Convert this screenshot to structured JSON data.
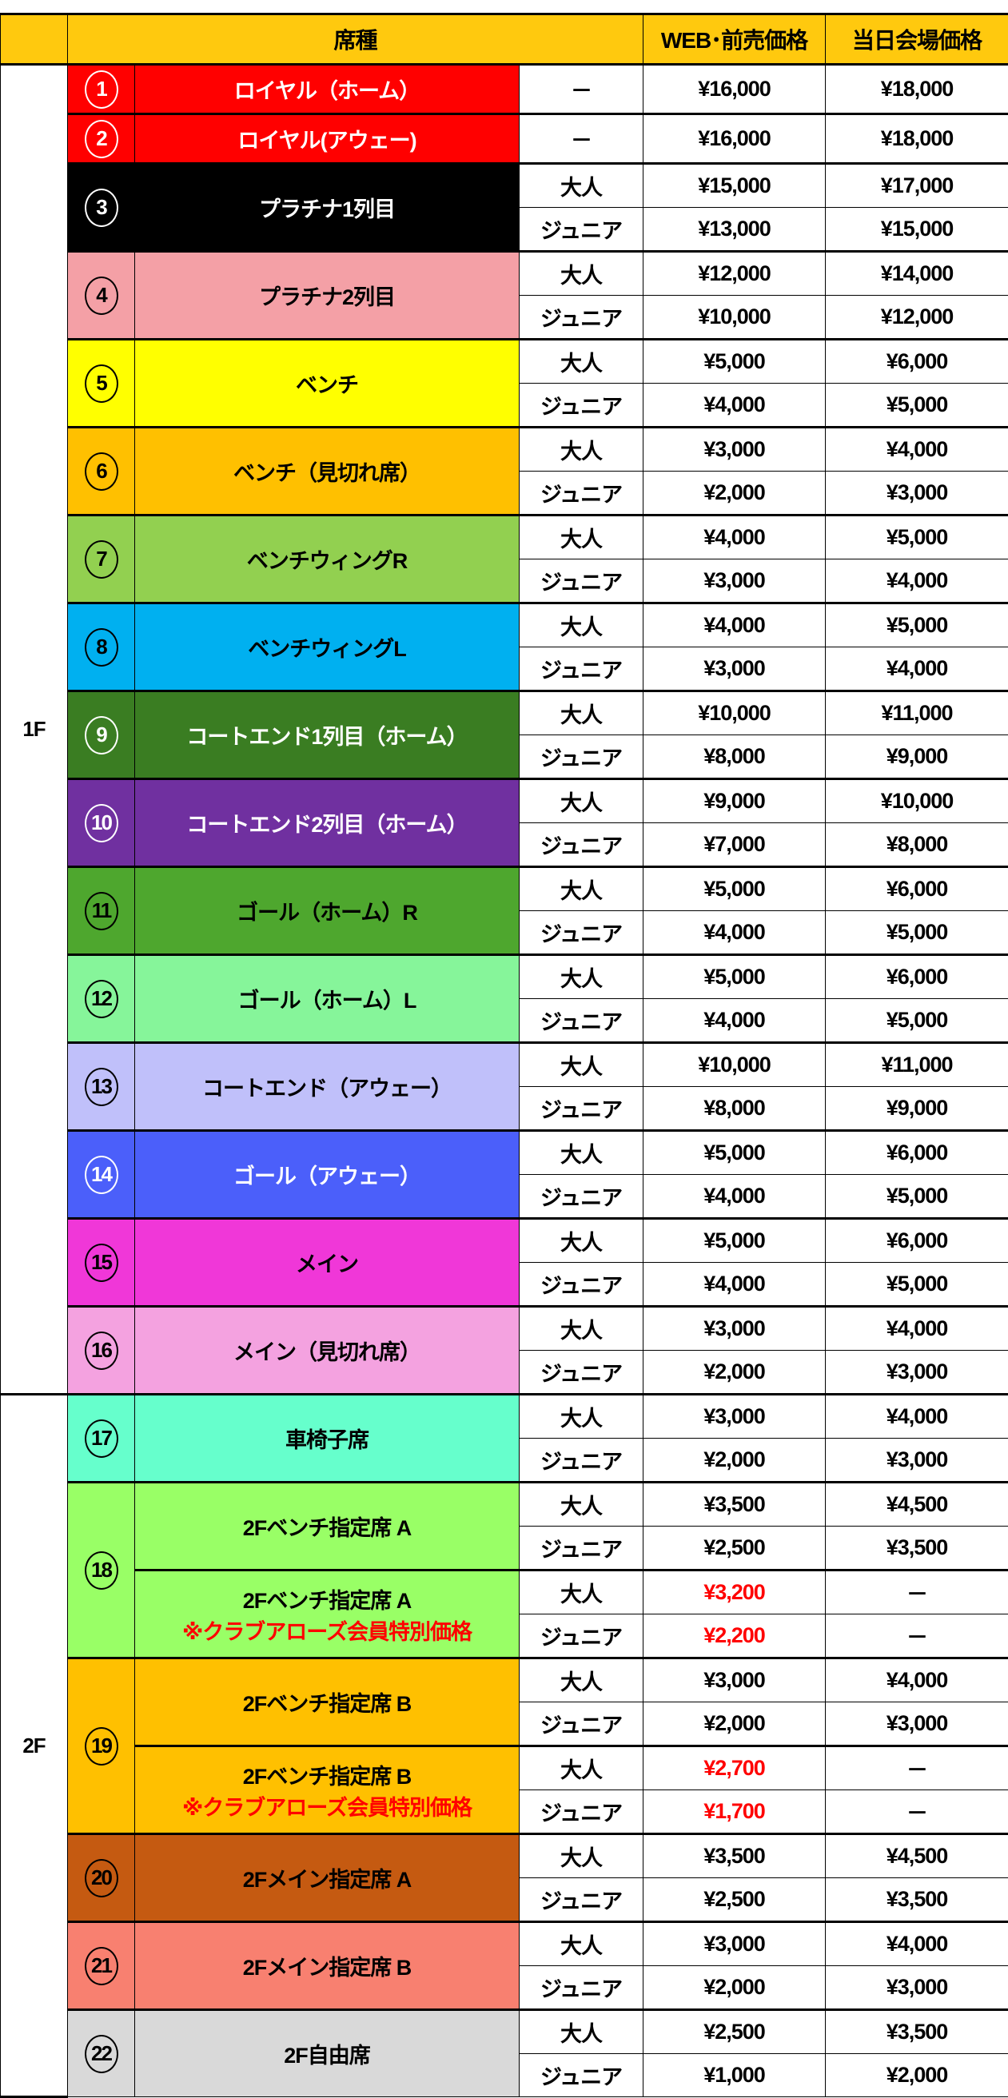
{
  "header": {
    "seat_type": "席種",
    "web_price": "WEB･前売価格",
    "day_price": "当日会場価格"
  },
  "labels": {
    "adult": "大人",
    "junior": "ジュニア"
  },
  "floors": [
    {
      "label": "1F",
      "seats": [
        {
          "num": "1",
          "color": "#FF0000",
          "text": "#FFFFFF",
          "blocks": [
            {
              "name": "ロイヤル（ホーム）",
              "rows": [
                {
                  "type": "－",
                  "web": "¥16,000",
                  "day": "¥18,000"
                }
              ]
            }
          ]
        },
        {
          "num": "2",
          "color": "#FF0000",
          "text": "#FFFFFF",
          "blocks": [
            {
              "name": "ロイヤル(アウェー)",
              "rows": [
                {
                  "type": "－",
                  "web": "¥16,000",
                  "day": "¥18,000"
                }
              ]
            }
          ]
        },
        {
          "num": "3",
          "color": "#000000",
          "text": "#FFFFFF",
          "blocks": [
            {
              "name": "プラチナ1列目",
              "rows": [
                {
                  "type": "大人",
                  "web": "¥15,000",
                  "day": "¥17,000"
                },
                {
                  "type": "ジュニア",
                  "web": "¥13,000",
                  "day": "¥15,000"
                }
              ]
            }
          ]
        },
        {
          "num": "4",
          "color": "#F4A0A6",
          "text": "#000000",
          "blocks": [
            {
              "name": "プラチナ2列目",
              "rows": [
                {
                  "type": "大人",
                  "web": "¥12,000",
                  "day": "¥14,000"
                },
                {
                  "type": "ジュニア",
                  "web": "¥10,000",
                  "day": "¥12,000"
                }
              ]
            }
          ]
        },
        {
          "num": "5",
          "color": "#FFFF00",
          "text": "#000000",
          "blocks": [
            {
              "name": "ベンチ",
              "rows": [
                {
                  "type": "大人",
                  "web": "¥5,000",
                  "day": "¥6,000"
                },
                {
                  "type": "ジュニア",
                  "web": "¥4,000",
                  "day": "¥5,000"
                }
              ]
            }
          ]
        },
        {
          "num": "6",
          "color": "#FFC000",
          "text": "#000000",
          "blocks": [
            {
              "name": "ベンチ（見切れ席）",
              "rows": [
                {
                  "type": "大人",
                  "web": "¥3,000",
                  "day": "¥4,000"
                },
                {
                  "type": "ジュニア",
                  "web": "¥2,000",
                  "day": "¥3,000"
                }
              ]
            }
          ]
        },
        {
          "num": "7",
          "color": "#92D050",
          "text": "#000000",
          "blocks": [
            {
              "name": "ベンチウィングR",
              "rows": [
                {
                  "type": "大人",
                  "web": "¥4,000",
                  "day": "¥5,000"
                },
                {
                  "type": "ジュニア",
                  "web": "¥3,000",
                  "day": "¥4,000"
                }
              ]
            }
          ]
        },
        {
          "num": "8",
          "color": "#00B0F0",
          "text": "#000000",
          "blocks": [
            {
              "name": "ベンチウィングL",
              "rows": [
                {
                  "type": "大人",
                  "web": "¥4,000",
                  "day": "¥5,000"
                },
                {
                  "type": "ジュニア",
                  "web": "¥3,000",
                  "day": "¥4,000"
                }
              ]
            }
          ]
        },
        {
          "num": "9",
          "color": "#3A7D22",
          "text": "#FFFFFF",
          "blocks": [
            {
              "name": "コートエンド1列目（ホーム）",
              "rows": [
                {
                  "type": "大人",
                  "web": "¥10,000",
                  "day": "¥11,000"
                },
                {
                  "type": "ジュニア",
                  "web": "¥8,000",
                  "day": "¥9,000"
                }
              ]
            }
          ]
        },
        {
          "num": "10",
          "color": "#7030A0",
          "text": "#FFFFFF",
          "blocks": [
            {
              "name": "コートエンド2列目（ホーム）",
              "rows": [
                {
                  "type": "大人",
                  "web": "¥9,000",
                  "day": "¥10,000"
                },
                {
                  "type": "ジュニア",
                  "web": "¥7,000",
                  "day": "¥8,000"
                }
              ]
            }
          ]
        },
        {
          "num": "11",
          "color": "#4EA72E",
          "text": "#000000",
          "blocks": [
            {
              "name": "ゴール（ホーム）R",
              "rows": [
                {
                  "type": "大人",
                  "web": "¥5,000",
                  "day": "¥6,000"
                },
                {
                  "type": "ジュニア",
                  "web": "¥4,000",
                  "day": "¥5,000"
                }
              ]
            }
          ]
        },
        {
          "num": "12",
          "color": "#86F59A",
          "text": "#000000",
          "blocks": [
            {
              "name": "ゴール（ホーム）L",
              "rows": [
                {
                  "type": "大人",
                  "web": "¥5,000",
                  "day": "¥6,000"
                },
                {
                  "type": "ジュニア",
                  "web": "¥4,000",
                  "day": "¥5,000"
                }
              ]
            }
          ]
        },
        {
          "num": "13",
          "color": "#C0C0FA",
          "text": "#000000",
          "blocks": [
            {
              "name": "コートエンド（アウェー）",
              "rows": [
                {
                  "type": "大人",
                  "web": "¥10,000",
                  "day": "¥11,000"
                },
                {
                  "type": "ジュニア",
                  "web": "¥8,000",
                  "day": "¥9,000"
                }
              ]
            }
          ]
        },
        {
          "num": "14",
          "color": "#4B5FFA",
          "text": "#FFFFFF",
          "blocks": [
            {
              "name": "ゴール（アウェー）",
              "rows": [
                {
                  "type": "大人",
                  "web": "¥5,000",
                  "day": "¥6,000"
                },
                {
                  "type": "ジュニア",
                  "web": "¥4,000",
                  "day": "¥5,000"
                }
              ]
            }
          ]
        },
        {
          "num": "15",
          "color": "#F037D8",
          "text": "#000000",
          "blocks": [
            {
              "name": "メイン",
              "rows": [
                {
                  "type": "大人",
                  "web": "¥5,000",
                  "day": "¥6,000"
                },
                {
                  "type": "ジュニア",
                  "web": "¥4,000",
                  "day": "¥5,000"
                }
              ]
            }
          ]
        },
        {
          "num": "16",
          "color": "#F4A2E0",
          "text": "#000000",
          "blocks": [
            {
              "name": "メイン（見切れ席）",
              "rows": [
                {
                  "type": "大人",
                  "web": "¥3,000",
                  "day": "¥4,000"
                },
                {
                  "type": "ジュニア",
                  "web": "¥2,000",
                  "day": "¥3,000"
                }
              ]
            }
          ]
        }
      ]
    },
    {
      "label": "2F",
      "seats": [
        {
          "num": "17",
          "color": "#66FFCC",
          "text": "#000000",
          "blocks": [
            {
              "name": "車椅子席",
              "rows": [
                {
                  "type": "大人",
                  "web": "¥3,000",
                  "day": "¥4,000"
                },
                {
                  "type": "ジュニア",
                  "web": "¥2,000",
                  "day": "¥3,000"
                }
              ]
            }
          ]
        },
        {
          "num": "18",
          "color": "#99FF66",
          "text": "#000000",
          "blocks": [
            {
              "name": "2Fベンチ指定席 A",
              "rows": [
                {
                  "type": "大人",
                  "web": "¥3,500",
                  "day": "¥4,500"
                },
                {
                  "type": "ジュニア",
                  "web": "¥2,500",
                  "day": "¥3,500"
                }
              ]
            },
            {
              "name": "2Fベンチ指定席 A",
              "note": "※クラブアローズ会員特別価格",
              "rows": [
                {
                  "type": "大人",
                  "web": "¥3,200",
                  "day": "－",
                  "special": true
                },
                {
                  "type": "ジュニア",
                  "web": "¥2,200",
                  "day": "－",
                  "special": true
                }
              ]
            }
          ]
        },
        {
          "num": "19",
          "color": "#FFC000",
          "text": "#000000",
          "blocks": [
            {
              "name": "2Fベンチ指定席 B",
              "rows": [
                {
                  "type": "大人",
                  "web": "¥3,000",
                  "day": "¥4,000"
                },
                {
                  "type": "ジュニア",
                  "web": "¥2,000",
                  "day": "¥3,000"
                }
              ]
            },
            {
              "name": "2Fベンチ指定席 B",
              "note": "※クラブアローズ会員特別価格",
              "rows": [
                {
                  "type": "大人",
                  "web": "¥2,700",
                  "day": "－",
                  "special": true
                },
                {
                  "type": "ジュニア",
                  "web": "¥1,700",
                  "day": "－",
                  "special": true
                }
              ]
            }
          ]
        },
        {
          "num": "20",
          "color": "#C55A11",
          "text": "#000000",
          "blocks": [
            {
              "name": "2Fメイン指定席 A",
              "rows": [
                {
                  "type": "大人",
                  "web": "¥3,500",
                  "day": "¥4,500"
                },
                {
                  "type": "ジュニア",
                  "web": "¥2,500",
                  "day": "¥3,500"
                }
              ]
            }
          ]
        },
        {
          "num": "21",
          "color": "#F88070",
          "text": "#000000",
          "blocks": [
            {
              "name": "2Fメイン指定席 B",
              "rows": [
                {
                  "type": "大人",
                  "web": "¥3,000",
                  "day": "¥4,000"
                },
                {
                  "type": "ジュニア",
                  "web": "¥2,000",
                  "day": "¥3,000"
                }
              ]
            }
          ]
        },
        {
          "num": "22",
          "color": "#D9D9D9",
          "text": "#000000",
          "blocks": [
            {
              "name": "2F自由席",
              "rows": [
                {
                  "type": "大人",
                  "web": "¥2,500",
                  "day": "¥3,500"
                },
                {
                  "type": "ジュニア",
                  "web": "¥1,000",
                  "day": "¥2,000"
                }
              ]
            }
          ]
        }
      ]
    }
  ],
  "colors": {
    "header": "#FFC90E",
    "special_price": "#FF0000"
  }
}
